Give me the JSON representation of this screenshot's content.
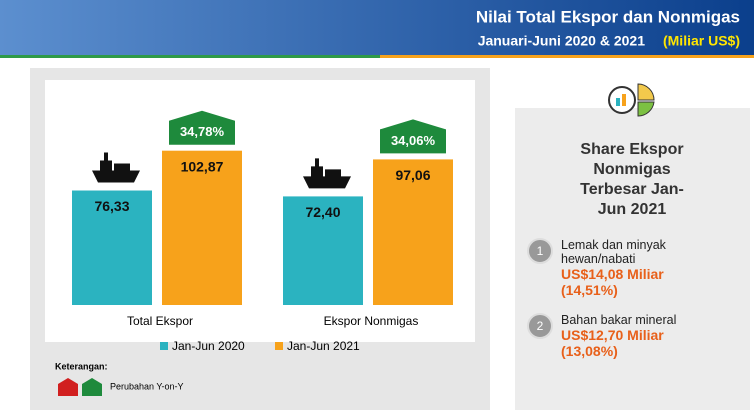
{
  "header": {
    "title": "Nilai Total Ekspor dan Nonmigas",
    "subtitle": "Januari-Juni 2020 & 2021",
    "unit": "(Miliar US$)"
  },
  "chart_data": {
    "type": "bar",
    "categories": [
      "Total Ekspor",
      "Ekspor Nonmigas"
    ],
    "series": [
      {
        "name": "Jan-Jun 2020",
        "color": "#2bb3c0",
        "values": [
          76.33,
          72.4
        ],
        "value_labels": [
          "76,33",
          "72,40"
        ]
      },
      {
        "name": "Jan-Jun 2021",
        "color": "#f7a21b",
        "values": [
          102.87,
          97.06
        ],
        "value_labels": [
          "102,87",
          "97,06"
        ]
      }
    ],
    "changes": {
      "values": [
        34.78,
        34.06
      ],
      "value_labels": [
        "34,78%",
        "34,06%"
      ],
      "color": "#1e8a3c"
    },
    "note_title": "Keterangan:",
    "note_label": "Perubahan Y-on-Y"
  },
  "share": {
    "title": "Share Ekspor Nonmigas Terbesar Jan-Jun 2021",
    "items": [
      {
        "rank": 1,
        "label": "Lemak dan minyak hewan/nabati",
        "value": "US$14,08 Miliar",
        "share": "(14,51%)"
      },
      {
        "rank": 2,
        "label": "Bahan bakar mineral",
        "value": "US$12,70 Miliar",
        "share": "(13,08%)"
      }
    ]
  }
}
